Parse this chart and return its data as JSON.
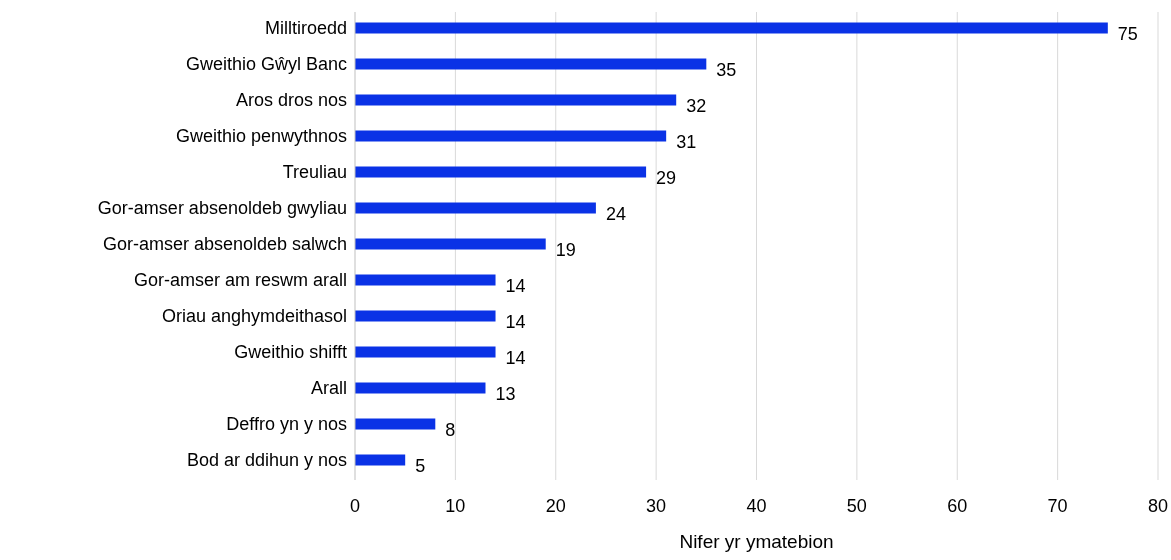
{
  "chart_data": {
    "type": "bar",
    "orientation": "horizontal",
    "xlabel": "Nifer yr ymatebion",
    "categories": [
      "Milltiroedd",
      "Gweithio Gŵyl Banc",
      "Aros dros nos",
      "Gweithio penwythnos",
      "Treuliau",
      "Gor-amser absenoldeb gwyliau",
      "Gor-amser absenoldeb salwch",
      "Gor-amser am reswm arall",
      "Oriau anghymdeithasol",
      "Gweithio shifft",
      "Arall",
      "Deffro yn y nos",
      "Bod ar ddihun y nos"
    ],
    "values": [
      75,
      35,
      32,
      31,
      29,
      24,
      19,
      14,
      14,
      14,
      13,
      8,
      5
    ],
    "color": "#0a32e6",
    "xlim": [
      0,
      80
    ],
    "xticks": [
      0,
      10,
      20,
      30,
      40,
      50,
      60,
      70,
      80
    ],
    "grid": "x",
    "data_labels": true
  }
}
